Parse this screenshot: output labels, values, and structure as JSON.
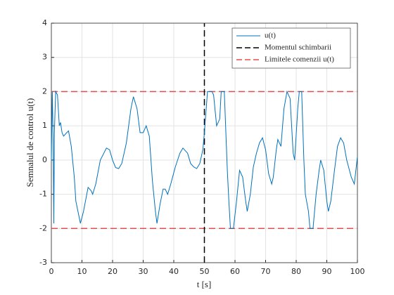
{
  "chart_data": {
    "type": "line",
    "xlabel": "t [s]",
    "ylabel": "Semnalul de control u(t)",
    "xlim": [
      0,
      100
    ],
    "ylim": [
      -3,
      4
    ],
    "xticks": [
      0,
      10,
      20,
      30,
      40,
      50,
      60,
      70,
      80,
      90,
      100
    ],
    "yticks": [
      -3,
      -2,
      -1,
      0,
      1,
      2,
      3,
      4
    ],
    "grid": true,
    "legend": "upper right",
    "series": [
      {
        "name": "u(t)",
        "color": "#0072bd",
        "dash": false,
        "x": [
          0,
          0.3,
          0.6,
          0.8,
          1.0,
          1.4,
          2,
          2.6,
          3,
          3.5,
          4,
          5,
          5.6,
          6.5,
          7.5,
          8,
          9.5,
          10.5,
          12,
          13,
          13.5,
          14.5,
          16,
          18,
          19,
          20,
          21,
          22,
          23,
          24.5,
          26,
          26.8,
          28,
          29,
          30,
          31,
          32,
          33,
          34,
          34.5,
          35.5,
          36.5,
          37.2,
          38,
          39,
          40.5,
          42,
          43,
          44.5,
          45.5,
          46.5,
          47.5,
          48.5,
          49.5,
          50,
          51,
          52.5,
          53,
          54,
          55,
          55.5,
          56.5,
          57.5,
          58,
          58.5,
          59.5,
          60.5,
          61.5,
          62.5,
          63.5,
          64,
          65,
          66,
          67,
          68,
          69,
          70,
          71,
          72,
          72.5,
          73.5,
          74,
          75,
          76,
          77,
          78,
          79,
          79.5,
          80.5,
          81,
          81.8,
          82.5,
          83,
          84,
          84.5,
          85.5,
          86.5,
          87.5,
          88,
          89,
          90,
          90.5,
          91.3,
          92.5,
          93.5,
          94.5,
          95.5,
          96.5,
          98,
          99,
          100
        ],
        "values": [
          0,
          2,
          0.5,
          -1.85,
          0.8,
          2,
          1.9,
          1.0,
          1.1,
          0.8,
          0.7,
          0.8,
          0.85,
          0.4,
          -0.5,
          -1.2,
          -1.85,
          -1.5,
          -0.8,
          -0.9,
          -1.0,
          -0.7,
          0,
          0.35,
          0.3,
          0,
          -0.22,
          -0.25,
          -0.1,
          0.5,
          1.5,
          1.85,
          1.5,
          0.8,
          0.8,
          1.0,
          0.7,
          -0.6,
          -1.5,
          -1.85,
          -1.3,
          -0.85,
          -0.85,
          -1.0,
          -0.7,
          -0.2,
          0.2,
          0.35,
          0.2,
          -0.1,
          -0.2,
          -0.25,
          -0.1,
          0.3,
          0.8,
          2,
          2,
          1.9,
          1.0,
          1.2,
          2,
          2,
          -0.3,
          -1.2,
          -2,
          -2,
          -1.2,
          -0.3,
          -0.5,
          -1.2,
          -1.5,
          -1.0,
          -0.2,
          0.2,
          0.5,
          0.65,
          0.3,
          -0.4,
          -0.7,
          -0.5,
          0.3,
          0.6,
          0.4,
          1.5,
          2,
          1.8,
          0.2,
          0,
          1.5,
          2,
          2,
          0,
          -1.0,
          -1.5,
          -2,
          -2,
          -1.0,
          -0.3,
          0,
          -0.3,
          -1.2,
          -1.5,
          -1.2,
          -0.3,
          0.4,
          0.65,
          0.5,
          0,
          -0.5,
          -0.7,
          0.1
        ]
      },
      {
        "name": "Momentul schimbarii",
        "color": "#000000",
        "dash": true,
        "x": [
          50,
          50
        ],
        "values": [
          -3,
          4
        ]
      },
      {
        "name": "Limitele comenzii u(t)",
        "color": "#e05050",
        "dash": true,
        "x": [
          0,
          100,
          null,
          0,
          100
        ],
        "values": [
          2,
          2,
          null,
          -2,
          -2
        ]
      }
    ]
  }
}
